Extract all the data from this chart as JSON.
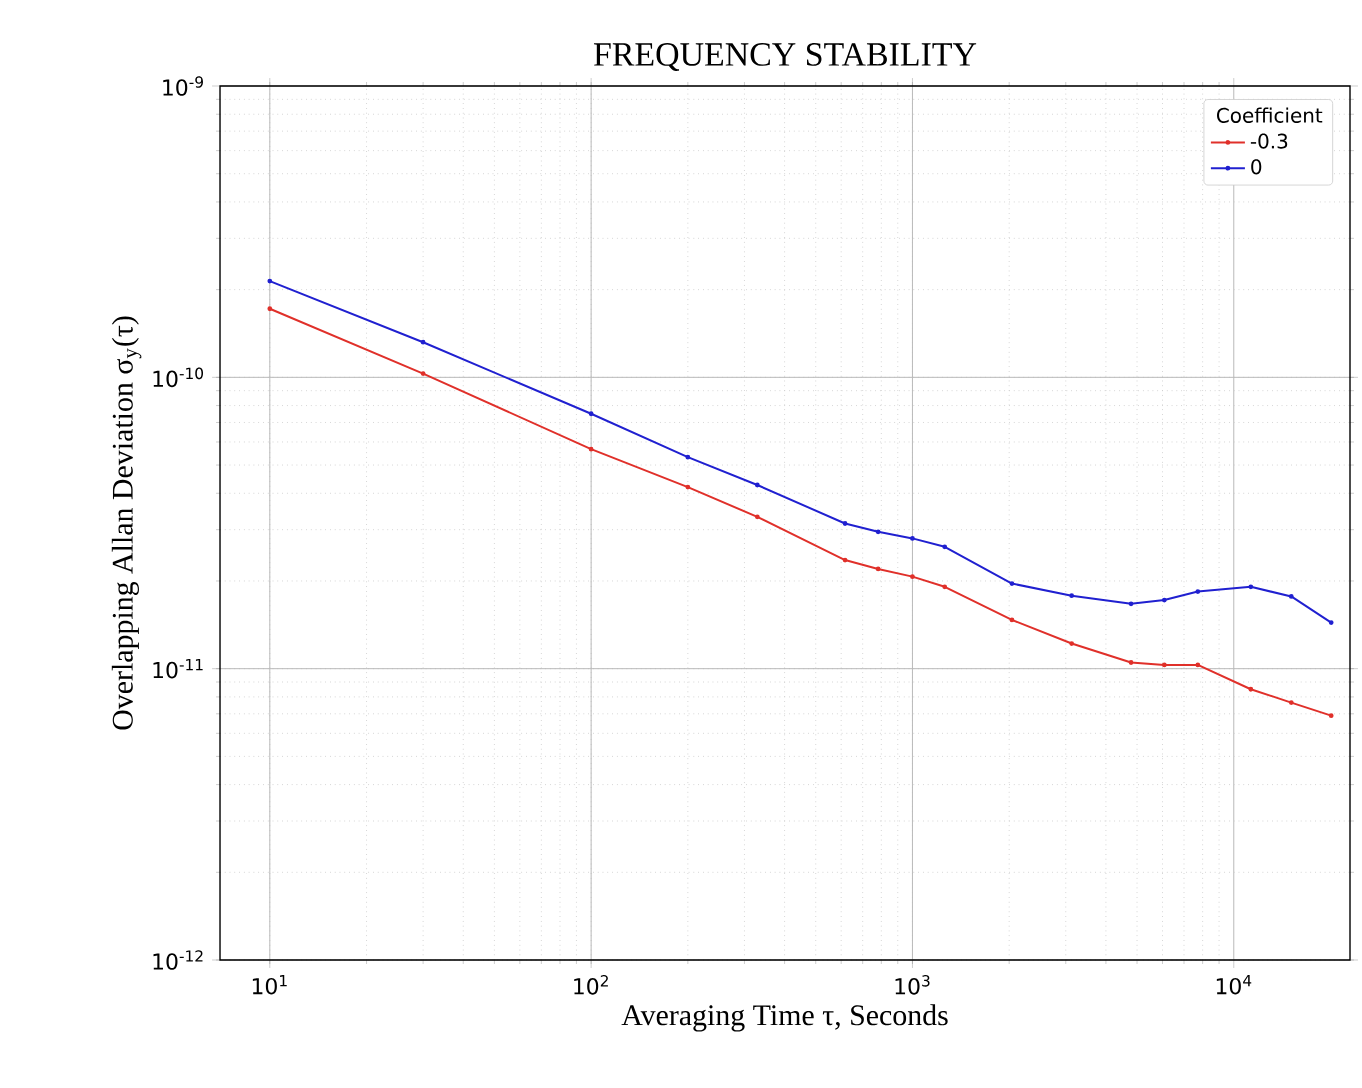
{
  "chart_data": {
    "type": "line",
    "title": "FREQUENCY STABILITY",
    "xlabel": "Averaging Time τ, Seconds",
    "ylabel": "Overlapping Allan Deviation σ$_{y}$(τ)",
    "legend_title": "Coefficient",
    "x": [
      10,
      30,
      100,
      200,
      329,
      617,
      782,
      1000,
      1260,
      2040,
      3130,
      4790,
      6080,
      7730,
      11300,
      15100,
      20100
    ],
    "series": [
      {
        "name": "-0.3",
        "color": "#e0302a",
        "values": [
          1.72e-10,
          1.03e-10,
          5.67e-11,
          4.2e-11,
          3.32e-11,
          2.36e-11,
          2.2e-11,
          2.07e-11,
          1.91e-11,
          1.47e-11,
          1.22e-11,
          1.05e-11,
          1.03e-11,
          1.03e-11,
          8.5e-12,
          7.65e-12,
          6.9e-12
        ]
      },
      {
        "name": "0",
        "color": "#2020d0",
        "values": [
          2.14e-10,
          1.32e-10,
          7.5e-11,
          5.32e-11,
          4.27e-11,
          3.15e-11,
          2.95e-11,
          2.8e-11,
          2.62e-11,
          1.96e-11,
          1.78e-11,
          1.67e-11,
          1.72e-11,
          1.84e-11,
          1.91e-11,
          1.77e-11,
          1.44e-11
        ]
      }
    ],
    "xlim": [
      7,
      23000
    ],
    "ylim": [
      1e-12,
      1e-09
    ],
    "xticks": [
      {
        "value": 10,
        "label": "10$^{1}$"
      },
      {
        "value": 100,
        "label": "10$^{2}$"
      },
      {
        "value": 1000,
        "label": "10$^{3}$"
      },
      {
        "value": 10000,
        "label": "10$^{4}$"
      }
    ],
    "yticks": [
      {
        "value": 1e-12,
        "label": "10$^{-12}$"
      },
      {
        "value": 1e-11,
        "label": "10$^{-11}$"
      },
      {
        "value": 1e-10,
        "label": "10$^{-10}$"
      },
      {
        "value": 1e-09,
        "label": "10$^{-9}$"
      }
    ],
    "log": "xy",
    "grid": true,
    "legend": "top right",
    "marker": "circle"
  }
}
